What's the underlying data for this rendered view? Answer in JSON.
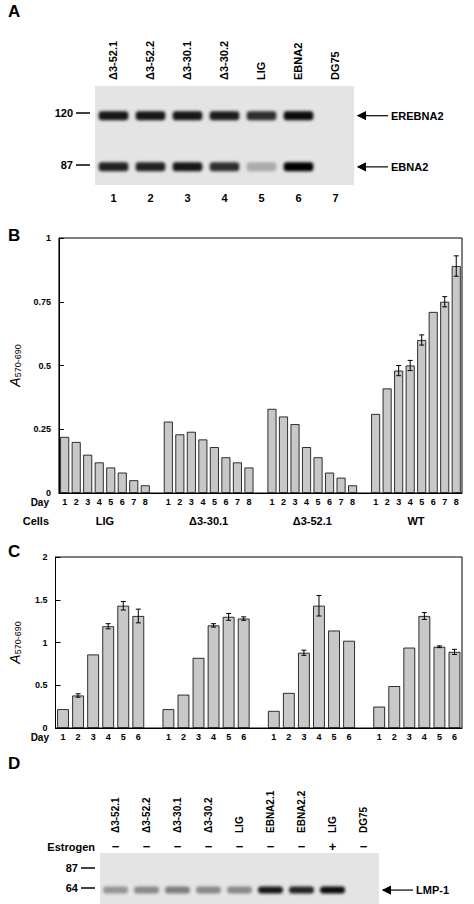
{
  "panel_A": {
    "panel": "A",
    "lanes": [
      "Δ3-52.1",
      "Δ3-52.2",
      "Δ3-30.1",
      "Δ3-30.2",
      "LIG",
      "EBNA2",
      "DG75"
    ],
    "lane_numbers": [
      1,
      2,
      3,
      4,
      5,
      6,
      7
    ],
    "markers": [
      120,
      87
    ],
    "bands": [
      {
        "name": "EREBNA2",
        "mw": 118,
        "intensity": [
          0.9,
          0.9,
          0.9,
          0.88,
          0.8,
          0.95,
          0
        ]
      },
      {
        "name": "EBNA2",
        "mw": 86,
        "intensity": [
          0.85,
          0.85,
          0.9,
          0.8,
          0.25,
          1.0,
          0
        ]
      }
    ]
  },
  "chart_data": [
    {
      "panel": "B",
      "type": "bar",
      "y_label": {
        "main": "A",
        "subscript": "570-690"
      },
      "x_label": "Day",
      "group_label": "Cells",
      "categories": [
        "1",
        "2",
        "3",
        "4",
        "5",
        "6",
        "7",
        "8"
      ],
      "groups": [
        {
          "name": "LIG",
          "values": [
            0.22,
            0.2,
            0.15,
            0.12,
            0.1,
            0.08,
            0.05,
            0.03
          ],
          "errors": [
            null,
            null,
            null,
            null,
            null,
            null,
            null,
            null
          ]
        },
        {
          "name": "Δ3-30.1",
          "values": [
            0.28,
            0.23,
            0.24,
            0.21,
            0.18,
            0.14,
            0.12,
            0.1
          ],
          "errors": [
            null,
            null,
            null,
            null,
            null,
            null,
            null,
            null
          ]
        },
        {
          "name": "Δ3-52.1",
          "values": [
            0.33,
            0.3,
            0.27,
            0.18,
            0.14,
            0.08,
            0.06,
            0.03
          ],
          "errors": [
            null,
            null,
            null,
            null,
            null,
            null,
            null,
            null
          ]
        },
        {
          "name": "WT",
          "values": [
            0.31,
            0.41,
            0.48,
            0.5,
            0.6,
            0.71,
            0.75,
            0.89
          ],
          "errors": [
            null,
            null,
            0.02,
            0.02,
            0.02,
            null,
            0.02,
            0.04
          ]
        }
      ],
      "ylim": [
        0,
        1
      ],
      "yticks": [
        0,
        0.25,
        0.5,
        0.75,
        1
      ],
      "color": "#c8c8c8",
      "grid": false
    },
    {
      "panel": "C",
      "type": "bar",
      "y_label": {
        "main": "A",
        "subscript": "570-690"
      },
      "x_label": "Day",
      "categories": [
        "1",
        "2",
        "3",
        "4",
        "5",
        "6"
      ],
      "groups": [
        {
          "values": [
            0.22,
            0.38,
            0.86,
            1.19,
            1.43,
            1.31
          ],
          "errors": [
            null,
            0.02,
            null,
            0.03,
            0.05,
            0.08
          ]
        },
        {
          "values": [
            0.22,
            0.39,
            0.82,
            1.2,
            1.3,
            1.28
          ],
          "errors": [
            null,
            null,
            null,
            0.02,
            0.04,
            0.02
          ]
        },
        {
          "values": [
            0.2,
            0.41,
            0.88,
            1.43,
            1.14,
            1.02
          ],
          "errors": [
            null,
            null,
            0.03,
            0.12,
            null,
            null
          ]
        },
        {
          "values": [
            0.25,
            0.49,
            0.94,
            1.31,
            0.95,
            0.89
          ],
          "errors": [
            null,
            null,
            null,
            0.04,
            0.01,
            0.03
          ]
        }
      ],
      "ylim": [
        0,
        2
      ],
      "yticks": [
        0,
        0.5,
        1,
        1.5,
        2
      ],
      "color": "#c8c8c8",
      "grid": false
    }
  ],
  "panel_D": {
    "panel": "D",
    "lanes": [
      "Δ3-52.1",
      "Δ3-52.2",
      "Δ3-30.1",
      "Δ3-30.2",
      "LIG",
      "EBNA2.1",
      "EBNA2.2",
      "LIG",
      "DG75"
    ],
    "row_label": "Estrogen",
    "estrogen": [
      "−",
      "−",
      "−",
      "−",
      "−",
      "−",
      "−",
      "+",
      "−"
    ],
    "markers": [
      87,
      64
    ],
    "bands": [
      {
        "name": "LMP-1",
        "mw": 62,
        "intensity": [
          0.35,
          0.4,
          0.45,
          0.4,
          0.4,
          0.9,
          0.85,
          0.95,
          0
        ]
      }
    ]
  }
}
